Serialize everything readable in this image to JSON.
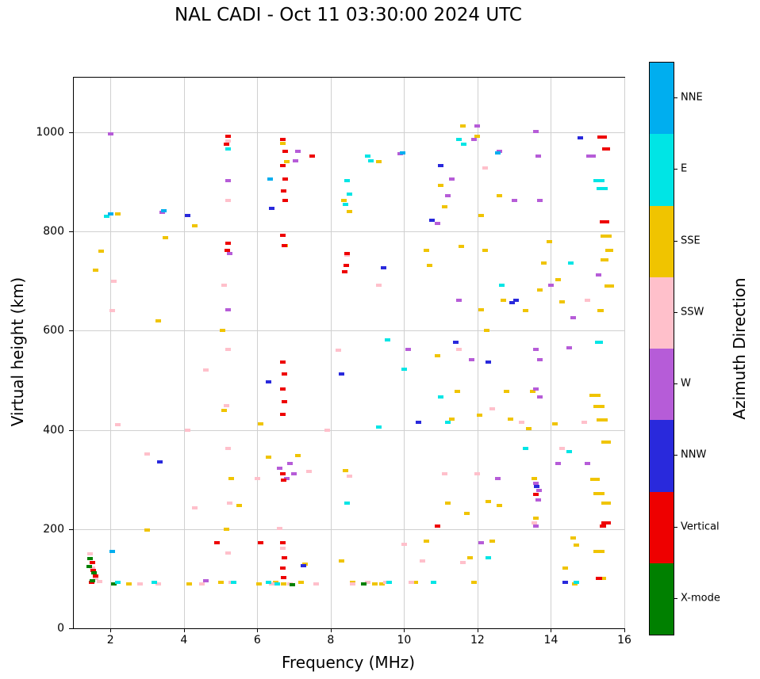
{
  "chart_data": {
    "type": "scatter",
    "title": "NAL CADI - Oct 11 03:30:00 2024 UTC",
    "xlabel": "Frequency (MHz)",
    "ylabel": "Virtual height (km)",
    "xlim": [
      1.0,
      16.0
    ],
    "ylim": [
      0,
      1110
    ],
    "xticks": [
      2,
      4,
      6,
      8,
      10,
      12,
      14,
      16
    ],
    "yticks": [
      0,
      200,
      400,
      600,
      800,
      1000
    ],
    "grid": true,
    "legend_position": "right-colorbar",
    "marker": {
      "width": 7,
      "height": 4
    },
    "colorbar": {
      "title": "Azimuth Direction",
      "categories": [
        {
          "label": "X-mode",
          "color": "#008000"
        },
        {
          "label": "Vertical",
          "color": "#ee0000"
        },
        {
          "label": "NNW",
          "color": "#2929dc"
        },
        {
          "label": "W",
          "color": "#b65cd8"
        },
        {
          "label": "SSW",
          "color": "#ffc0cb"
        },
        {
          "label": "SSE",
          "color": "#f0c400"
        },
        {
          "label": "E",
          "color": "#00e5e5"
        },
        {
          "label": "NNE",
          "color": "#00aeef"
        }
      ]
    },
    "points": [
      [
        2.2,
        835,
        5
      ],
      [
        1.75,
        760,
        5
      ],
      [
        1.6,
        722,
        5
      ],
      [
        2.5,
        90,
        5
      ],
      [
        3.0,
        198,
        5
      ],
      [
        3.3,
        620,
        5
      ],
      [
        3.5,
        788,
        5
      ],
      [
        4.3,
        812,
        5
      ],
      [
        4.15,
        90,
        5
      ],
      [
        5.05,
        600,
        5
      ],
      [
        5.1,
        440,
        5
      ],
      [
        5.3,
        302,
        5
      ],
      [
        5.15,
        200,
        5
      ],
      [
        5.0,
        92,
        5
      ],
      [
        5.5,
        248,
        5
      ],
      [
        6.1,
        412,
        5
      ],
      [
        6.3,
        345,
        5
      ],
      [
        6.5,
        92,
        5
      ],
      [
        6.05,
        90,
        5
      ],
      [
        6.7,
        978,
        5
      ],
      [
        6.8,
        940,
        5
      ],
      [
        6.75,
        772,
        5
      ],
      [
        6.72,
        90,
        5
      ],
      [
        7.2,
        92,
        5
      ],
      [
        7.3,
        130,
        5
      ],
      [
        7.1,
        348,
        5
      ],
      [
        8.35,
        862,
        5
      ],
      [
        8.5,
        840,
        5
      ],
      [
        8.4,
        318,
        5
      ],
      [
        8.3,
        135,
        5
      ],
      [
        8.6,
        92,
        5
      ],
      [
        9.3,
        940,
        5
      ],
      [
        9.4,
        90,
        5
      ],
      [
        9.2,
        90,
        5
      ],
      [
        10.6,
        762,
        5
      ],
      [
        10.7,
        732,
        5
      ],
      [
        10.6,
        176,
        5
      ],
      [
        10.3,
        92,
        5
      ],
      [
        11.0,
        892,
        5
      ],
      [
        11.1,
        850,
        5
      ],
      [
        11.2,
        252,
        5
      ],
      [
        11.3,
        422,
        5
      ],
      [
        11.45,
        478,
        5
      ],
      [
        10.9,
        550,
        5
      ],
      [
        11.6,
        1012,
        5
      ],
      [
        11.7,
        232,
        5
      ],
      [
        11.8,
        142,
        5
      ],
      [
        11.9,
        92,
        5
      ],
      [
        11.55,
        770,
        5
      ],
      [
        12.0,
        992,
        5
      ],
      [
        12.1,
        832,
        5
      ],
      [
        12.2,
        762,
        5
      ],
      [
        12.1,
        642,
        5
      ],
      [
        12.25,
        600,
        5
      ],
      [
        12.3,
        256,
        5
      ],
      [
        12.4,
        176,
        5
      ],
      [
        12.05,
        430,
        5
      ],
      [
        12.6,
        872,
        5
      ],
      [
        12.7,
        662,
        5
      ],
      [
        12.8,
        478,
        5
      ],
      [
        12.9,
        422,
        5
      ],
      [
        12.6,
        248,
        5
      ],
      [
        13.4,
        402,
        5
      ],
      [
        13.5,
        478,
        5
      ],
      [
        13.55,
        302,
        5
      ],
      [
        13.6,
        222,
        5
      ],
      [
        13.7,
        682,
        5
      ],
      [
        13.8,
        736,
        5
      ],
      [
        13.3,
        640,
        5
      ],
      [
        14.1,
        412,
        5
      ],
      [
        14.2,
        702,
        5
      ],
      [
        14.3,
        658,
        5
      ],
      [
        14.4,
        122,
        5
      ],
      [
        13.95,
        780,
        5
      ],
      [
        14.6,
        182,
        5
      ],
      [
        14.7,
        168,
        5
      ],
      [
        14.65,
        90,
        5
      ],
      [
        15.2,
        470,
        5,
        14
      ],
      [
        15.3,
        447,
        5,
        14
      ],
      [
        15.4,
        420,
        5,
        14
      ],
      [
        15.2,
        300,
        5,
        12
      ],
      [
        15.3,
        272,
        5,
        14
      ],
      [
        15.5,
        375,
        5,
        12
      ],
      [
        15.5,
        252,
        5,
        12
      ],
      [
        15.3,
        155,
        5,
        14
      ],
      [
        15.4,
        100,
        5,
        10
      ],
      [
        15.5,
        790,
        5,
        14
      ],
      [
        15.6,
        762,
        5,
        10
      ],
      [
        15.45,
        742,
        5,
        10
      ],
      [
        15.6,
        690,
        5,
        12
      ],
      [
        15.35,
        640,
        5,
        8
      ],
      [
        1.5,
        122,
        4
      ],
      [
        1.6,
        100,
        4
      ],
      [
        1.7,
        95,
        4
      ],
      [
        1.45,
        150,
        4
      ],
      [
        2.1,
        700,
        4
      ],
      [
        2.2,
        410,
        4
      ],
      [
        2.05,
        640,
        4
      ],
      [
        3.0,
        352,
        4
      ],
      [
        3.3,
        90,
        4
      ],
      [
        2.8,
        90,
        4
      ],
      [
        4.1,
        400,
        4
      ],
      [
        4.3,
        242,
        4
      ],
      [
        4.5,
        90,
        4
      ],
      [
        4.6,
        520,
        4
      ],
      [
        5.2,
        982,
        4
      ],
      [
        5.2,
        862,
        4
      ],
      [
        5.1,
        692,
        4
      ],
      [
        5.2,
        562,
        4
      ],
      [
        5.2,
        362,
        4
      ],
      [
        5.25,
        252,
        4
      ],
      [
        5.2,
        152,
        4
      ],
      [
        5.3,
        92,
        4
      ],
      [
        5.15,
        448,
        4
      ],
      [
        6.0,
        302,
        4
      ],
      [
        6.6,
        202,
        4
      ],
      [
        6.7,
        162,
        4
      ],
      [
        6.9,
        90,
        4
      ],
      [
        6.4,
        90,
        4
      ],
      [
        7.4,
        316,
        4
      ],
      [
        7.9,
        400,
        4
      ],
      [
        7.6,
        90,
        4
      ],
      [
        8.45,
        752,
        4
      ],
      [
        8.5,
        306,
        4
      ],
      [
        8.6,
        90,
        4
      ],
      [
        8.2,
        560,
        4
      ],
      [
        9.3,
        692,
        4
      ],
      [
        9.5,
        92,
        4
      ],
      [
        9.0,
        92,
        4
      ],
      [
        10.2,
        92,
        4
      ],
      [
        10.5,
        136,
        4
      ],
      [
        10.0,
        170,
        4
      ],
      [
        11.1,
        312,
        4
      ],
      [
        11.5,
        562,
        4
      ],
      [
        11.6,
        132,
        4
      ],
      [
        10.8,
        92,
        4
      ],
      [
        12.2,
        928,
        4
      ],
      [
        12.4,
        442,
        4
      ],
      [
        12.0,
        312,
        4
      ],
      [
        13.2,
        416,
        4
      ],
      [
        13.55,
        212,
        4
      ],
      [
        14.3,
        362,
        4
      ],
      [
        15.0,
        662,
        4
      ],
      [
        14.9,
        415,
        4
      ],
      [
        2.0,
        996,
        3
      ],
      [
        3.4,
        838,
        3
      ],
      [
        4.6,
        96,
        3
      ],
      [
        5.2,
        902,
        3
      ],
      [
        5.2,
        642,
        3
      ],
      [
        5.25,
        755,
        3
      ],
      [
        6.6,
        322,
        3
      ],
      [
        6.8,
        302,
        3
      ],
      [
        7.0,
        312,
        3
      ],
      [
        6.9,
        332,
        3
      ],
      [
        7.1,
        962,
        3
      ],
      [
        7.05,
        942,
        3
      ],
      [
        9.9,
        956,
        3
      ],
      [
        10.1,
        562,
        3
      ],
      [
        10.9,
        816,
        3
      ],
      [
        11.2,
        872,
        3
      ],
      [
        11.5,
        662,
        3
      ],
      [
        11.3,
        905,
        3
      ],
      [
        11.9,
        986,
        3
      ],
      [
        12.0,
        1012,
        3
      ],
      [
        12.1,
        172,
        3
      ],
      [
        11.85,
        542,
        3
      ],
      [
        12.6,
        962,
        3
      ],
      [
        13.0,
        862,
        3
      ],
      [
        12.55,
        302,
        3
      ],
      [
        13.6,
        1002,
        3
      ],
      [
        13.65,
        952,
        3
      ],
      [
        13.7,
        862,
        3
      ],
      [
        13.6,
        562,
        3
      ],
      [
        13.7,
        542,
        3
      ],
      [
        13.6,
        482,
        3
      ],
      [
        13.7,
        466,
        3
      ],
      [
        13.6,
        292,
        3
      ],
      [
        13.68,
        278,
        3
      ],
      [
        13.6,
        206,
        3
      ],
      [
        13.65,
        258,
        3
      ],
      [
        14.0,
        692,
        3
      ],
      [
        14.2,
        332,
        3
      ],
      [
        14.6,
        626,
        3
      ],
      [
        14.5,
        566,
        3
      ],
      [
        15.1,
        952,
        3,
        12
      ],
      [
        15.3,
        712,
        3
      ],
      [
        15.0,
        332,
        3
      ],
      [
        3.35,
        336,
        2
      ],
      [
        4.1,
        832,
        2
      ],
      [
        6.3,
        496,
        2
      ],
      [
        6.4,
        846,
        2
      ],
      [
        7.25,
        126,
        2
      ],
      [
        8.3,
        512,
        2
      ],
      [
        10.4,
        416,
        2
      ],
      [
        10.75,
        822,
        2
      ],
      [
        11.0,
        932,
        2
      ],
      [
        11.4,
        576,
        2
      ],
      [
        12.95,
        656,
        2
      ],
      [
        13.05,
        662,
        2
      ],
      [
        13.62,
        286,
        2
      ],
      [
        14.4,
        92,
        2
      ],
      [
        14.8,
        988,
        2
      ],
      [
        12.3,
        536,
        2
      ],
      [
        9.45,
        726,
        2
      ],
      [
        1.5,
        132,
        1
      ],
      [
        1.52,
        116,
        1
      ],
      [
        1.6,
        106,
        1
      ],
      [
        1.48,
        92,
        1
      ],
      [
        5.2,
        992,
        1
      ],
      [
        5.15,
        976,
        1
      ],
      [
        5.2,
        776,
        1
      ],
      [
        5.18,
        762,
        1
      ],
      [
        6.1,
        172,
        1
      ],
      [
        4.9,
        172,
        1
      ],
      [
        6.7,
        986,
        1
      ],
      [
        6.75,
        962,
        1
      ],
      [
        6.7,
        932,
        1
      ],
      [
        6.75,
        906,
        1
      ],
      [
        6.72,
        882,
        1
      ],
      [
        6.75,
        862,
        1
      ],
      [
        6.7,
        792,
        1
      ],
      [
        6.74,
        772,
        1
      ],
      [
        6.7,
        536,
        1
      ],
      [
        6.73,
        512,
        1
      ],
      [
        6.7,
        482,
        1
      ],
      [
        6.74,
        456,
        1
      ],
      [
        6.7,
        432,
        1
      ],
      [
        6.7,
        312,
        1
      ],
      [
        6.72,
        298,
        1
      ],
      [
        6.7,
        172,
        1
      ],
      [
        6.73,
        142,
        1
      ],
      [
        6.7,
        122,
        1
      ],
      [
        6.71,
        102,
        1
      ],
      [
        7.5,
        952,
        1
      ],
      [
        8.42,
        732,
        1
      ],
      [
        8.45,
        756,
        1
      ],
      [
        8.38,
        718,
        1
      ],
      [
        10.9,
        206,
        1
      ],
      [
        13.6,
        270,
        1
      ],
      [
        15.4,
        990,
        1,
        12
      ],
      [
        15.5,
        966,
        1,
        10
      ],
      [
        15.45,
        820,
        1,
        12
      ],
      [
        15.5,
        212,
        1,
        12
      ],
      [
        15.42,
        206,
        1,
        8
      ],
      [
        15.3,
        100,
        1,
        8
      ],
      [
        1.45,
        140,
        0
      ],
      [
        1.5,
        96,
        0
      ],
      [
        1.55,
        112,
        0
      ],
      [
        2.1,
        90,
        0
      ],
      [
        8.9,
        90,
        0
      ],
      [
        6.95,
        88,
        0
      ],
      [
        1.42,
        125,
        0
      ],
      [
        1.9,
        830,
        6
      ],
      [
        2.2,
        92,
        6
      ],
      [
        3.2,
        92,
        6
      ],
      [
        5.2,
        966,
        6
      ],
      [
        5.35,
        92,
        6
      ],
      [
        6.3,
        92,
        6
      ],
      [
        6.55,
        90,
        6
      ],
      [
        8.45,
        902,
        6
      ],
      [
        8.5,
        876,
        6
      ],
      [
        9.0,
        952,
        6
      ],
      [
        9.1,
        942,
        6
      ],
      [
        9.6,
        92,
        6
      ],
      [
        9.3,
        406,
        6
      ],
      [
        9.55,
        582,
        6
      ],
      [
        10.0,
        522,
        6
      ],
      [
        10.8,
        92,
        6
      ],
      [
        11.0,
        466,
        6
      ],
      [
        11.2,
        416,
        6
      ],
      [
        11.5,
        986,
        6
      ],
      [
        11.62,
        976,
        6
      ],
      [
        12.3,
        142,
        6
      ],
      [
        13.3,
        362,
        6
      ],
      [
        14.5,
        356,
        6
      ],
      [
        14.7,
        92,
        6
      ],
      [
        14.55,
        736,
        6
      ],
      [
        15.3,
        902,
        6,
        14
      ],
      [
        15.4,
        886,
        6,
        14
      ],
      [
        15.3,
        576,
        6,
        10
      ],
      [
        8.4,
        855,
        6
      ],
      [
        8.45,
        252,
        6
      ],
      [
        12.65,
        692,
        6
      ],
      [
        2.0,
        836,
        7
      ],
      [
        3.45,
        842,
        7
      ],
      [
        6.35,
        906,
        7
      ],
      [
        9.95,
        958,
        7
      ],
      [
        2.05,
        155,
        7
      ],
      [
        12.55,
        958,
        7
      ]
    ]
  }
}
